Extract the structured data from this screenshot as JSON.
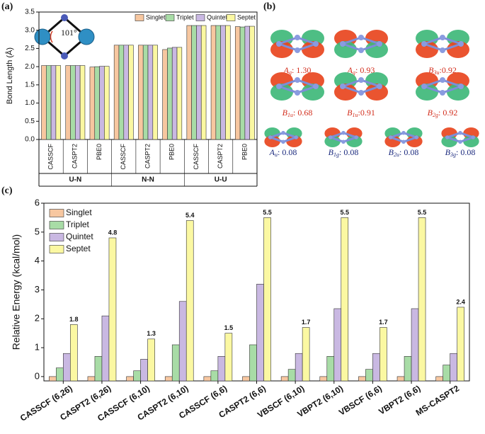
{
  "panels": [
    "(a)",
    "(b)",
    "(c)"
  ],
  "chart_data": [
    {
      "type": "bar",
      "y_label": "Bond Length (Å)",
      "annotation": "101°",
      "groups": [
        "U-N",
        "N-N",
        "U-U"
      ],
      "categories": [
        "CASSCF",
        "CASPT2",
        "PBE0",
        "CASSCF",
        "CASPT2",
        "PBE0",
        "CASSCF",
        "CASPT2",
        "PBE0"
      ],
      "series": [
        {
          "name": "Singlet",
          "color": "#f7c7a0",
          "values": [
            2.03,
            2.03,
            1.99,
            2.59,
            2.59,
            2.47,
            3.13,
            3.13,
            3.1
          ]
        },
        {
          "name": "Triplet",
          "color": "#a8dca6",
          "values": [
            2.03,
            2.03,
            2.0,
            2.59,
            2.59,
            2.51,
            3.13,
            3.13,
            3.09
          ]
        },
        {
          "name": "Quintet",
          "color": "#c9b8e2",
          "values": [
            2.03,
            2.03,
            2.01,
            2.59,
            2.59,
            2.53,
            3.13,
            3.13,
            3.11
          ]
        },
        {
          "name": "Septet",
          "color": "#fbf8a2",
          "values": [
            2.03,
            2.03,
            2.01,
            2.59,
            2.59,
            2.53,
            3.13,
            3.13,
            3.11
          ]
        }
      ],
      "ylim": [
        0,
        3.5
      ],
      "yticks": [
        {
          "value": 0,
          "label": "0.0"
        },
        0.5,
        {
          "value": 1,
          "label": "1.0"
        },
        1.5,
        {
          "value": 2,
          "label": "2.0"
        },
        2.5,
        {
          "value": 3,
          "label": "3.0"
        },
        3.5
      ],
      "legend": "top-right"
    },
    {
      "type": "bar",
      "y_label": "Relative Energy (kcal/mol)",
      "categories": [
        "CASSCF (6,26)",
        "CASPT2 (6,26)",
        "CASSCF (6,10)",
        "CASPT2 (6,10)",
        "CASSCF (6,6)",
        "CASPT2 (6,6)",
        "VBSCF (6,10)",
        "VBPT2 (6,10)",
        "VBSCF (6,6)",
        "VBPT2 (6,6)",
        "MS-CASPT2"
      ],
      "series": [
        {
          "name": "Singlet",
          "color": "#f7c7a0",
          "values": [
            0,
            0,
            0,
            0,
            0,
            0,
            0,
            0,
            0,
            0,
            0
          ]
        },
        {
          "name": "Triplet",
          "color": "#a8dca6",
          "values": [
            0.3,
            0.7,
            0.2,
            1.1,
            0.2,
            1.1,
            0.25,
            0.7,
            0.25,
            0.7,
            0.4
          ]
        },
        {
          "name": "Quintet",
          "color": "#c9b8e2",
          "values": [
            0.8,
            2.1,
            0.6,
            2.6,
            0.7,
            3.2,
            0.8,
            2.35,
            0.8,
            2.35,
            0.8
          ]
        },
        {
          "name": "Septet",
          "color": "#fbf8a2",
          "labeled": true,
          "values": [
            1.8,
            4.8,
            1.3,
            5.4,
            1.5,
            5.5,
            1.7,
            5.5,
            1.7,
            5.5,
            2.4
          ]
        }
      ],
      "ylim": [
        -0.15,
        6
      ],
      "yticks": [
        0,
        1,
        2,
        3,
        4,
        5,
        6
      ],
      "legend": "top-left"
    }
  ],
  "orbitals": [
    {
      "symbol": "A",
      "subscript": "g",
      "suffix": ": 1.30"
    },
    {
      "symbol": "A",
      "subscript": "g",
      "suffix": ": 0.93"
    },
    {
      "symbol": "B",
      "subscript": "3u",
      "suffix": ":0.92"
    },
    {
      "symbol": "B",
      "subscript": "1u",
      "suffix": ": 0.68"
    },
    {
      "symbol": "B",
      "subscript": "1u",
      "suffix": ":0.91"
    },
    {
      "symbol": "B",
      "subscript": "2g",
      "suffix": ": 0.92"
    },
    {
      "symbol": "A",
      "subscript": "u",
      "suffix": ": 0.08"
    },
    {
      "symbol": "B",
      "subscript": "1g",
      "suffix": ": 0.08"
    },
    {
      "symbol": "B",
      "subscript": "2u",
      "suffix": ": 0.08"
    },
    {
      "symbol": "B",
      "subscript": "3g",
      "suffix": ": 0.08"
    }
  ]
}
